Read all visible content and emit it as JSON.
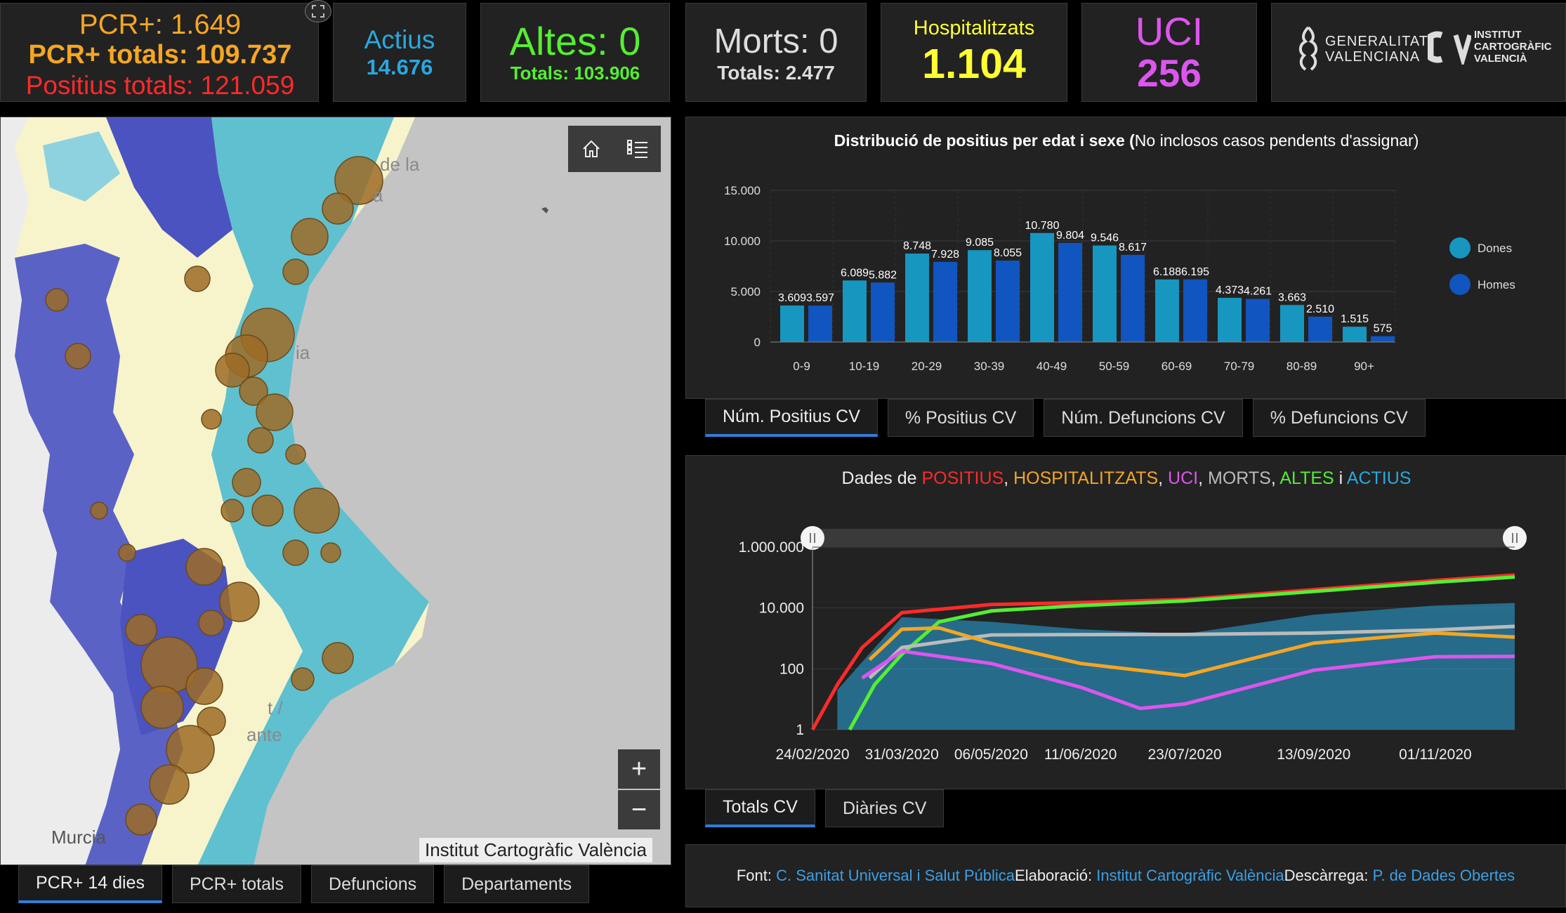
{
  "kpis": {
    "pcr14": "PCR+: 1.649",
    "pcr_totals": "PCR+ totals: 109.737",
    "positius_totals": "Positius totals: 121.059",
    "actius_label": "Actius",
    "actius_value": "14.676",
    "altes": "Altes: 0",
    "altes_totals": "Totals: 103.906",
    "morts": "Morts: 0",
    "morts_totals": "Totals: 2.477",
    "hosp_label": "Hospitalitzats",
    "hosp_value": "1.104",
    "uci_label": "UCI",
    "uci_value": "256"
  },
  "logos": {
    "gva_line1": "GENERALITAT",
    "gva_line2": "VALENCIANA",
    "icv_line1": "INSTITUT",
    "icv_line2": "CARTOGRÀFIC",
    "icv_line3": "VALENCIÀ"
  },
  "map": {
    "labels": [
      "de la",
      "a",
      "ia",
      "t /",
      "ante",
      "Murcia"
    ],
    "attribution": "Institut Cartogràfic València",
    "zoom_in": "+",
    "zoom_out": "−",
    "tabs": [
      "PCR+ 14 dies",
      "PCR+ totals",
      "Defuncions",
      "Departaments"
    ],
    "active_tab": 0
  },
  "age_chart_tabs": [
    "Núm. Positius CV",
    "% Positius CV",
    "Núm. Defuncions CV",
    "% Defuncions CV"
  ],
  "timeline_tabs": [
    "Totals CV",
    "Diàries CV"
  ],
  "timeline_title": {
    "prefix": "Dades de ",
    "positius": "POSITIUS",
    "hosp": "HOSPITALITZATS",
    "uci": "UCI",
    "morts": "MORTS",
    "altes": "ALTES",
    "conj": " i ",
    "actius": "ACTIUS",
    "comma": ", "
  },
  "footer": {
    "font_label": "Font: ",
    "font_link": "C. Sanitat Universal i Salut Pública",
    "elab_label": " Elaboració: ",
    "elab_link": "Institut Cartogràfic València",
    "desc_label": " Descàrrega: ",
    "desc_link": "P. de Dades Obertes"
  },
  "colors": {
    "positius": "#ff2a2a",
    "pcr": "#f5a623",
    "hosp": "#f5a623",
    "uci": "#dd55ee",
    "morts": "#bbbbbb",
    "altes": "#55ee33",
    "actius": "#29a8e0",
    "hosp_value": "#ffff33",
    "dones": "#1796c0",
    "homes": "#1155c0"
  },
  "chart_data": [
    {
      "type": "bar",
      "title": "Distribució de positius per edat i sexe (",
      "subtitle": "No inclosos casos pendents d'assignar)",
      "categories": [
        "0-9",
        "10-19",
        "20-29",
        "30-39",
        "40-49",
        "50-59",
        "60-69",
        "70-79",
        "80-89",
        "90+"
      ],
      "series": [
        {
          "name": "Dones",
          "values": [
            3609,
            6089,
            8748,
            9085,
            10780,
            9546,
            6188,
            4373,
            3663,
            1515
          ],
          "labels": [
            "3.609",
            "6.089",
            "8.748",
            "9.085",
            "10.780",
            "9.546",
            "6.188",
            "4.373",
            "3.663",
            "1.515"
          ]
        },
        {
          "name": "Homes",
          "values": [
            3597,
            5882,
            7928,
            8055,
            9804,
            8617,
            6195,
            4261,
            2510,
            575
          ],
          "labels": [
            "3.597",
            "5.882",
            "7.928",
            "8.055",
            "9.804",
            "8.617",
            "6.195",
            "4.261",
            "2.510",
            "575"
          ]
        }
      ],
      "yticks": [
        "0",
        "5.000",
        "10.000",
        "15.000"
      ],
      "ylim": [
        0,
        15000
      ],
      "legend": "right"
    },
    {
      "type": "line",
      "scale": "log",
      "yticks": [
        "1",
        "100",
        "10.000",
        "1.000.000"
      ],
      "xticks": [
        "24/02/2020",
        "31/03/2020",
        "06/05/2020",
        "11/06/2020",
        "23/07/2020",
        "13/09/2020",
        "01/11/2020"
      ],
      "series": [
        {
          "name": "POSITIUS",
          "points": [
            [
              "24/02/2020",
              1
            ],
            [
              "05/03/2020",
              30
            ],
            [
              "15/03/2020",
              500
            ],
            [
              "31/03/2020",
              7000
            ],
            [
              "06/05/2020",
              13000
            ],
            [
              "11/06/2020",
              15000
            ],
            [
              "23/07/2020",
              19000
            ],
            [
              "13/09/2020",
              40000
            ],
            [
              "01/11/2020",
              80000
            ],
            [
              "03/12/2020",
              121059
            ]
          ]
        },
        {
          "name": "ALTES",
          "points": [
            [
              "10/03/2020",
              1
            ],
            [
              "20/03/2020",
              30
            ],
            [
              "31/03/2020",
              300
            ],
            [
              "15/04/2020",
              3500
            ],
            [
              "06/05/2020",
              8000
            ],
            [
              "11/06/2020",
              12000
            ],
            [
              "23/07/2020",
              17000
            ],
            [
              "13/09/2020",
              35000
            ],
            [
              "01/11/2020",
              70000
            ],
            [
              "03/12/2020",
              103906
            ]
          ]
        },
        {
          "name": "MORTS",
          "points": [
            [
              "18/03/2020",
              50
            ],
            [
              "31/03/2020",
              500
            ],
            [
              "06/05/2020",
              1300
            ],
            [
              "11/06/2020",
              1330
            ],
            [
              "23/07/2020",
              1350
            ],
            [
              "13/09/2020",
              1500
            ],
            [
              "01/11/2020",
              1900
            ],
            [
              "03/12/2020",
              2477
            ]
          ]
        },
        {
          "name": "HOSPITALITZATS",
          "points": [
            [
              "18/03/2020",
              200
            ],
            [
              "31/03/2020",
              2000
            ],
            [
              "15/04/2020",
              2200
            ],
            [
              "06/05/2020",
              700
            ],
            [
              "11/06/2020",
              150
            ],
            [
              "23/07/2020",
              60
            ],
            [
              "13/09/2020",
              700
            ],
            [
              "01/11/2020",
              1500
            ],
            [
              "03/12/2020",
              1104
            ]
          ]
        },
        {
          "name": "UCI",
          "points": [
            [
              "15/03/2020",
              50
            ],
            [
              "31/03/2020",
              380
            ],
            [
              "06/05/2020",
              150
            ],
            [
              "11/06/2020",
              25
            ],
            [
              "05/07/2020",
              5
            ],
            [
              "23/07/2020",
              7
            ],
            [
              "13/09/2020",
              90
            ],
            [
              "01/11/2020",
              250
            ],
            [
              "03/12/2020",
              256
            ]
          ]
        },
        {
          "name": "ACTIUS",
          "points": [
            [
              "05/03/2020",
              20
            ],
            [
              "31/03/2020",
              5000
            ],
            [
              "06/05/2020",
              3500
            ],
            [
              "11/06/2020",
              2000
            ],
            [
              "23/07/2020",
              1400
            ],
            [
              "13/09/2020",
              6000
            ],
            [
              "01/11/2020",
              12000
            ],
            [
              "03/12/2020",
              14676
            ]
          ]
        }
      ]
    }
  ]
}
